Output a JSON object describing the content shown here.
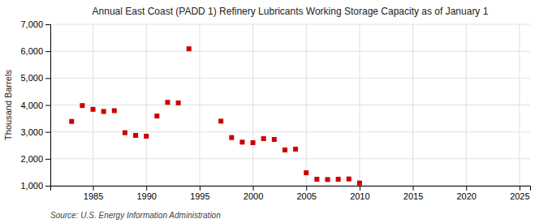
{
  "chart_data": {
    "type": "scatter",
    "title": "Annual East Coast (PADD 1) Refinery Lubricants Working Storage Capacity as of January 1",
    "ylabel": "Thousand Barrels",
    "source": "Source: U.S. Energy Information Administration",
    "x": [
      1983,
      1984,
      1985,
      1986,
      1987,
      1988,
      1989,
      1990,
      1991,
      1992,
      1993,
      1994,
      1997,
      1998,
      1999,
      2000,
      2001,
      2002,
      2003,
      2004,
      2005,
      2006,
      2007,
      2008,
      2009,
      2010
    ],
    "values": [
      3390,
      3980,
      3840,
      3760,
      3790,
      2970,
      2870,
      2840,
      3590,
      4100,
      4080,
      6090,
      3400,
      2790,
      2620,
      2600,
      2750,
      2720,
      2330,
      2360,
      1480,
      1240,
      1230,
      1240,
      1250,
      1100
    ],
    "color": "#cc0000",
    "marker": "square",
    "xlim": [
      1981,
      2026
    ],
    "ylim": [
      1000,
      7000
    ],
    "xticks": [
      1985,
      1990,
      1995,
      2000,
      2005,
      2010,
      2015,
      2020,
      2025
    ],
    "yticks": [
      {
        "value": 1000,
        "label": "1,000"
      },
      {
        "value": 2000,
        "label": "2,000"
      },
      {
        "value": 3000,
        "label": "3,000"
      },
      {
        "value": 4000,
        "label": "4,000"
      },
      {
        "value": 5000,
        "label": "5,000"
      },
      {
        "value": 6000,
        "label": "6,000"
      },
      {
        "value": 7000,
        "label": "7,000"
      }
    ],
    "grid": true
  }
}
